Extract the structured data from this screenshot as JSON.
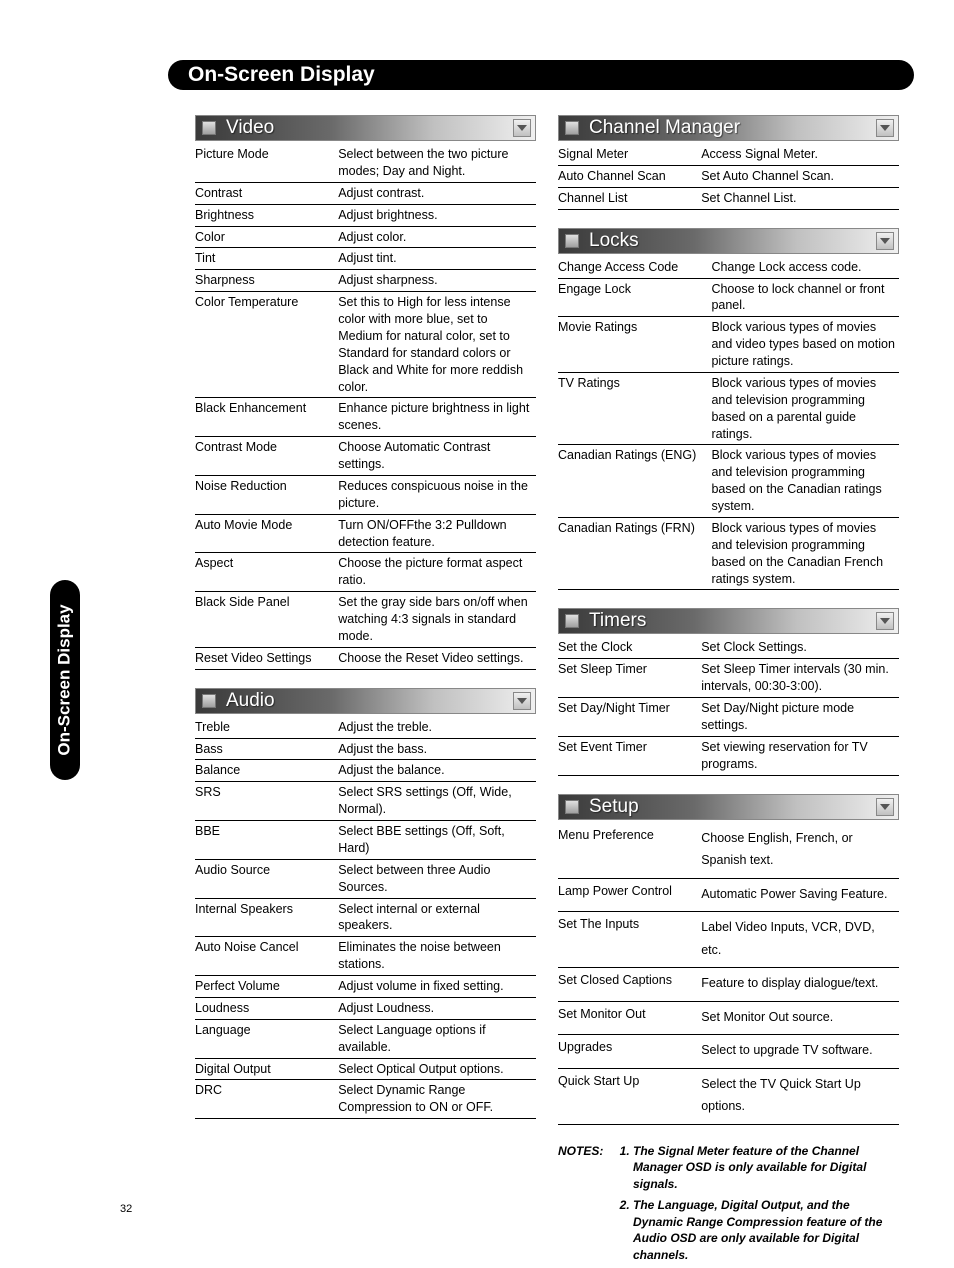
{
  "pageTitle": "On-Screen Display",
  "sideTab": "On-Screen Display",
  "pageNumber": "32",
  "sections": {
    "video": {
      "title": "Video",
      "rows": [
        [
          "Picture Mode",
          "Select between the two picture modes; Day and Night."
        ],
        [
          "Contrast",
          "Adjust contrast."
        ],
        [
          "Brightness",
          "Adjust brightness."
        ],
        [
          "Color",
          "Adjust color."
        ],
        [
          "Tint",
          "Adjust tint."
        ],
        [
          "Sharpness",
          "Adjust sharpness."
        ],
        [
          "Color Temperature",
          "Set this to High for less intense color with more blue, set to Medium for natural color, set to Standard for standard colors or Black and White for more reddish color."
        ],
        [
          "Black Enhancement",
          "Enhance picture brightness in light scenes."
        ],
        [
          "Contrast Mode",
          "Choose Automatic Contrast settings."
        ],
        [
          "Noise Reduction",
          "Reduces conspicuous noise in the picture."
        ],
        [
          "Auto Movie Mode",
          "Turn ON/OFFthe 3:2 Pulldown detection feature."
        ],
        [
          "Aspect",
          "Choose the picture format aspect ratio."
        ],
        [
          "Black Side Panel",
          "Set the gray side bars on/off when watching 4:3 signals in standard mode."
        ],
        [
          "Reset Video Settings",
          "Choose the Reset Video settings."
        ]
      ]
    },
    "audio": {
      "title": "Audio",
      "rows": [
        [
          "Treble",
          "Adjust the treble."
        ],
        [
          "Bass",
          "Adjust the bass."
        ],
        [
          "Balance",
          "Adjust the balance."
        ],
        [
          "SRS",
          "Select SRS settings (Off, Wide, Normal)."
        ],
        [
          "BBE",
          "Select BBE settings (Off, Soft, Hard)"
        ],
        [
          "Audio Source",
          "Select between three Audio Sources."
        ],
        [
          "Internal Speakers",
          "Select internal or external speakers."
        ],
        [
          "Auto Noise Cancel",
          "Eliminates the noise between stations."
        ],
        [
          "Perfect Volume",
          "Adjust volume in fixed setting."
        ],
        [
          "Loudness",
          "Adjust Loudness."
        ],
        [
          "Language",
          "Select Language options if available."
        ],
        [
          "Digital Output",
          "Select Optical Output options."
        ],
        [
          "DRC",
          "Select Dynamic Range Compression to ON or OFF."
        ]
      ]
    },
    "channelManager": {
      "title": "Channel Manager",
      "rows": [
        [
          "Signal Meter",
          "Access Signal Meter."
        ],
        [
          "Auto Channel Scan",
          "Set Auto Channel Scan."
        ],
        [
          "Channel List",
          "Set Channel List."
        ]
      ]
    },
    "locks": {
      "title": "Locks",
      "rows": [
        [
          "Change Access Code",
          "Change Lock access code."
        ],
        [
          "Engage Lock",
          "Choose to lock channel or front panel."
        ],
        [
          "Movie Ratings",
          "Block various types of movies and video types based on motion picture ratings."
        ],
        [
          "TV Ratings",
          "Block various types of movies and television programming based on a parental guide ratings."
        ],
        [
          "Canadian Ratings (ENG)",
          "Block various types of movies and television programming based on the Canadian ratings system."
        ],
        [
          "Canadian Ratings (FRN)",
          "Block various types of movies and television programming based on the Canadian French ratings system."
        ]
      ]
    },
    "timers": {
      "title": "Timers",
      "rows": [
        [
          "Set the Clock",
          "Set Clock Settings."
        ],
        [
          "Set Sleep Timer",
          "Set Sleep Timer intervals (30 min. intervals, 00:30-3:00)."
        ],
        [
          "Set Day/Night Timer",
          "Set Day/Night picture mode settings."
        ],
        [
          "Set Event Timer",
          "Set viewing reservation for TV programs."
        ]
      ]
    },
    "setup": {
      "title": "Setup",
      "rows": [
        [
          "Menu Preference",
          "Choose English, French, or Spanish text."
        ],
        [
          "Lamp Power Control",
          "Automatic Power Saving Feature."
        ],
        [
          "Set The Inputs",
          "Label Video Inputs, VCR, DVD, etc."
        ],
        [
          "Set Closed Captions",
          "Feature to display dialogue/text."
        ],
        [
          "Set Monitor Out",
          "Set Monitor Out source."
        ],
        [
          "Upgrades",
          "Select to upgrade TV software."
        ],
        [
          "Quick Start Up",
          "Select the TV Quick Start Up options."
        ]
      ]
    }
  },
  "notes": {
    "label": "NOTES:",
    "items": [
      "The Signal Meter feature of the Channel Manager OSD is only available for Digital signals.",
      "The Language, Digital Output, and the Dynamic Range Compression feature of the Audio OSD are only available for Digital channels."
    ]
  },
  "setupSpacing": true
}
